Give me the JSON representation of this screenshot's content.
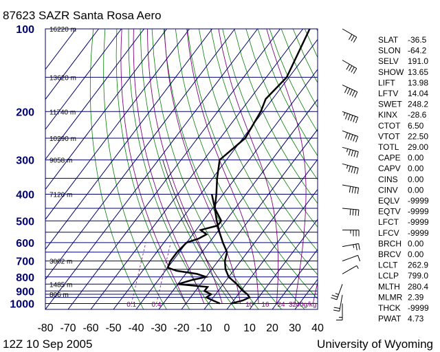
{
  "header": {
    "title": "87623 SAZR Santa Rosa Aero",
    "date": "12Z 10 Sep 2005",
    "credit": "University of Wyoming"
  },
  "chart_data": {
    "type": "line",
    "temperature_ticks": [
      "-80",
      "-70",
      "-60",
      "-50",
      "-40",
      "-30",
      "-20",
      "-10",
      "0",
      "10",
      "20",
      "30",
      "40"
    ],
    "xlim": [
      -80,
      40
    ],
    "pressure_labels": [
      {
        "p": 100,
        "text": "100"
      },
      {
        "p": 200,
        "text": "200"
      },
      {
        "p": 300,
        "text": "300"
      },
      {
        "p": 400,
        "text": "400"
      },
      {
        "p": 500,
        "text": "500"
      },
      {
        "p": 600,
        "text": "600"
      },
      {
        "p": 700,
        "text": "700"
      },
      {
        "p": 800,
        "text": "800"
      },
      {
        "p": 900,
        "text": "900"
      },
      {
        "p": 1000,
        "text": "1000"
      }
    ],
    "height_labels": [
      {
        "p": 100,
        "text": "16220 m"
      },
      {
        "p": 150,
        "text": "13620 m"
      },
      {
        "p": 200,
        "text": "11740 m"
      },
      {
        "p": 250,
        "text": "10290 m"
      },
      {
        "p": 300,
        "text": "9058 m"
      },
      {
        "p": 400,
        "text": "7120 m"
      },
      {
        "p": 700,
        "text": "3002 m"
      },
      {
        "p": 850,
        "text": "1485 m"
      },
      {
        "p": 925,
        "text": "806 m"
      }
    ],
    "mixing_ratio_labels": [
      {
        "t": -44,
        "text": "0.1"
      },
      {
        "t": -33,
        "text": "0.4"
      },
      {
        "t": 8,
        "text": "10"
      },
      {
        "t": 15,
        "text": "16"
      },
      {
        "t": 22,
        "text": "24"
      },
      {
        "t": 27,
        "text": "32"
      },
      {
        "t": 33,
        "text": "40g/kg"
      }
    ],
    "temperature_profile": [
      {
        "p": 1000,
        "t": 0
      },
      {
        "p": 975,
        "t": 4
      },
      {
        "p": 950,
        "t": 6
      },
      {
        "p": 925,
        "t": 4
      },
      {
        "p": 900,
        "t": 1
      },
      {
        "p": 850,
        "t": -4
      },
      {
        "p": 800,
        "t": -10
      },
      {
        "p": 750,
        "t": -14
      },
      {
        "p": 700,
        "t": -17
      },
      {
        "p": 650,
        "t": -19
      },
      {
        "p": 600,
        "t": -24
      },
      {
        "p": 550,
        "t": -29
      },
      {
        "p": 500,
        "t": -34
      },
      {
        "p": 450,
        "t": -39
      },
      {
        "p": 400,
        "t": -43
      },
      {
        "p": 350,
        "t": -48
      },
      {
        "p": 300,
        "t": -53
      },
      {
        "p": 250,
        "t": -49
      },
      {
        "p": 200,
        "t": -51
      },
      {
        "p": 180,
        "t": -53
      },
      {
        "p": 150,
        "t": -51
      },
      {
        "p": 100,
        "t": -57
      }
    ],
    "dewpoint_profile": [
      {
        "p": 1000,
        "t": -5
      },
      {
        "p": 975,
        "t": -9
      },
      {
        "p": 950,
        "t": -13
      },
      {
        "p": 925,
        "t": -12
      },
      {
        "p": 900,
        "t": -16
      },
      {
        "p": 870,
        "t": -16
      },
      {
        "p": 850,
        "t": -30
      },
      {
        "p": 820,
        "t": -25
      },
      {
        "p": 800,
        "t": -20
      },
      {
        "p": 780,
        "t": -25
      },
      {
        "p": 760,
        "t": -35
      },
      {
        "p": 740,
        "t": -40
      },
      {
        "p": 700,
        "t": -41
      },
      {
        "p": 650,
        "t": -41
      },
      {
        "p": 600,
        "t": -40
      },
      {
        "p": 580,
        "t": -36
      },
      {
        "p": 560,
        "t": -34
      },
      {
        "p": 540,
        "t": -38
      },
      {
        "p": 520,
        "t": -32
      },
      {
        "p": 500,
        "t": -32
      },
      {
        "p": 450,
        "t": -39
      },
      {
        "p": 400,
        "t": -45
      }
    ],
    "wind_barbs": [
      {
        "p": 100,
        "dir": 300,
        "speed": 30
      },
      {
        "p": 130,
        "dir": 300,
        "speed": 40
      },
      {
        "p": 160,
        "dir": 295,
        "speed": 50
      },
      {
        "p": 200,
        "dir": 290,
        "speed": 55
      },
      {
        "p": 235,
        "dir": 290,
        "speed": 50
      },
      {
        "p": 270,
        "dir": 285,
        "speed": 45
      },
      {
        "p": 310,
        "dir": 285,
        "speed": 45
      },
      {
        "p": 370,
        "dir": 280,
        "speed": 40
      },
      {
        "p": 450,
        "dir": 275,
        "speed": 40
      },
      {
        "p": 540,
        "dir": 270,
        "speed": 35
      },
      {
        "p": 620,
        "dir": 260,
        "speed": 25
      },
      {
        "p": 700,
        "dir": 250,
        "speed": 10
      },
      {
        "p": 780,
        "dir": 240,
        "speed": 5
      },
      {
        "p": 850,
        "dir": 20,
        "speed": 25
      },
      {
        "p": 930,
        "dir": 10,
        "speed": 20
      },
      {
        "p": 1000,
        "dir": 0,
        "speed": 15
      }
    ],
    "indices": [
      {
        "key": "SLAT",
        "value": "-36.5"
      },
      {
        "key": "SLON",
        "value": "-64.2"
      },
      {
        "key": "SELV",
        "value": "191.0"
      },
      {
        "key": "SHOW",
        "value": "13.65"
      },
      {
        "key": "LIFT",
        "value": "13.98"
      },
      {
        "key": "LFTV",
        "value": "14.04"
      },
      {
        "key": "SWET",
        "value": "248.2"
      },
      {
        "key": "KINX",
        "value": "-28.6"
      },
      {
        "key": "CTOT",
        "value": "6.50"
      },
      {
        "key": "VTOT",
        "value": "22.50"
      },
      {
        "key": "TOTL",
        "value": "29.00"
      },
      {
        "key": "CAPE",
        "value": "0.00"
      },
      {
        "key": "CAPV",
        "value": "0.00"
      },
      {
        "key": "CINS",
        "value": "0.00"
      },
      {
        "key": "CINV",
        "value": "0.00"
      },
      {
        "key": "EQLV",
        "value": "-9999"
      },
      {
        "key": "EQTV",
        "value": "-9999"
      },
      {
        "key": "LFCT",
        "value": "-9999"
      },
      {
        "key": "LFCV",
        "value": "-9999"
      },
      {
        "key": "BRCH",
        "value": "0.00"
      },
      {
        "key": "BRCV",
        "value": "0.00"
      },
      {
        "key": "LCLT",
        "value": "262.9"
      },
      {
        "key": "LCLP",
        "value": "799.0"
      },
      {
        "key": "MLTH",
        "value": "280.4"
      },
      {
        "key": "MLMR",
        "value": "2.39"
      },
      {
        "key": "THCK",
        "value": "-9999"
      },
      {
        "key": "PWAT",
        "value": "4.73"
      }
    ],
    "colors": {
      "grid": "#00006e",
      "dry_adiabat": "#008000",
      "moist_adiabat": "#800080",
      "profile": "#000000"
    }
  }
}
